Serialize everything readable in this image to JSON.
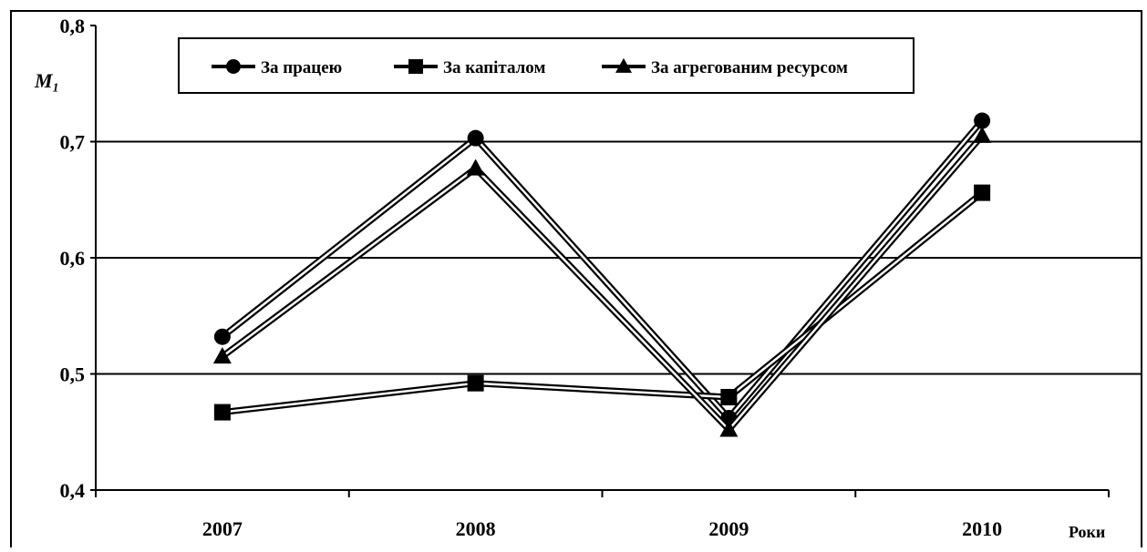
{
  "chart_data": {
    "type": "line",
    "categories": [
      "2007",
      "2008",
      "2009",
      "2010"
    ],
    "series": [
      {
        "name": "За працею",
        "marker": "circle",
        "values": [
          0.532,
          0.703,
          0.462,
          0.718
        ]
      },
      {
        "name": "За капіталом",
        "marker": "square",
        "values": [
          0.467,
          0.492,
          0.48,
          0.656
        ]
      },
      {
        "name": "За агрегованим ресурсом",
        "marker": "triangle",
        "values": [
          0.515,
          0.677,
          0.452,
          0.705
        ]
      }
    ],
    "ylabel": "M₁",
    "xlabel": "Роки",
    "ylim": [
      0.4,
      0.8
    ],
    "yticks": [
      {
        "value": 0.4,
        "label": "0,4"
      },
      {
        "value": 0.5,
        "label": "0,5"
      },
      {
        "value": 0.6,
        "label": "0,6"
      },
      {
        "value": 0.7,
        "label": "0,7"
      },
      {
        "value": 0.8,
        "label": "0,8"
      }
    ],
    "grid": "horizontal",
    "legend_position": "top",
    "line_color": "#000000"
  }
}
